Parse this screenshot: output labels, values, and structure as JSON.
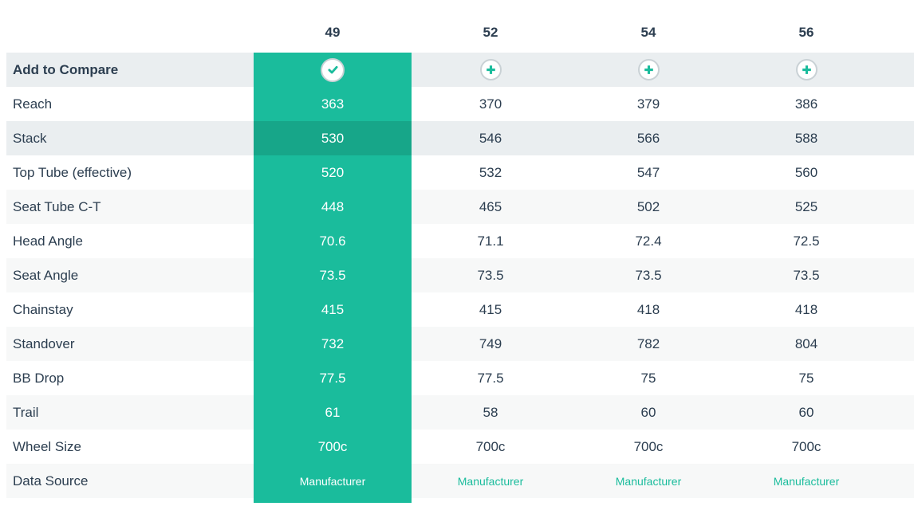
{
  "table": {
    "size_headers": [
      "49",
      "52",
      "54",
      "56"
    ],
    "selected_size": "49",
    "compare_row": {
      "label": "Add to Compare",
      "selected_icon": "check-icon",
      "unselected_icon": "plus-icon"
    },
    "rows": [
      {
        "label": "Reach",
        "values": [
          "363",
          "370",
          "379",
          "386"
        ]
      },
      {
        "label": "Stack",
        "values": [
          "530",
          "546",
          "566",
          "588"
        ],
        "highlighted": true
      },
      {
        "label": "Top Tube (effective)",
        "values": [
          "520",
          "532",
          "547",
          "560"
        ]
      },
      {
        "label": "Seat Tube C-T",
        "values": [
          "448",
          "465",
          "502",
          "525"
        ]
      },
      {
        "label": "Head Angle",
        "values": [
          "70.6",
          "71.1",
          "72.4",
          "72.5"
        ]
      },
      {
        "label": "Seat Angle",
        "values": [
          "73.5",
          "73.5",
          "73.5",
          "73.5"
        ]
      },
      {
        "label": "Chainstay",
        "values": [
          "415",
          "415",
          "418",
          "418"
        ]
      },
      {
        "label": "Standover",
        "values": [
          "732",
          "749",
          "782",
          "804"
        ]
      },
      {
        "label": "BB Drop",
        "values": [
          "77.5",
          "77.5",
          "75",
          "75"
        ]
      },
      {
        "label": "Trail",
        "values": [
          "61",
          "58",
          "60",
          "60"
        ]
      },
      {
        "label": "Wheel Size",
        "values": [
          "700c",
          "700c",
          "700c",
          "700c"
        ]
      },
      {
        "label": "Data Source",
        "values": [
          "Manufacturer",
          "Manufacturer",
          "Manufacturer",
          "Manufacturer"
        ],
        "is_link": true
      }
    ]
  },
  "colors": {
    "accent": "#1abc9c",
    "accent_dark": "#17a689",
    "row_shade_strong": "#eaeef0",
    "row_shade_light": "#f7f8f8",
    "text": "#2c3e50",
    "icon_ring": "#c9d1d5",
    "selected_text": "#ffffff"
  }
}
